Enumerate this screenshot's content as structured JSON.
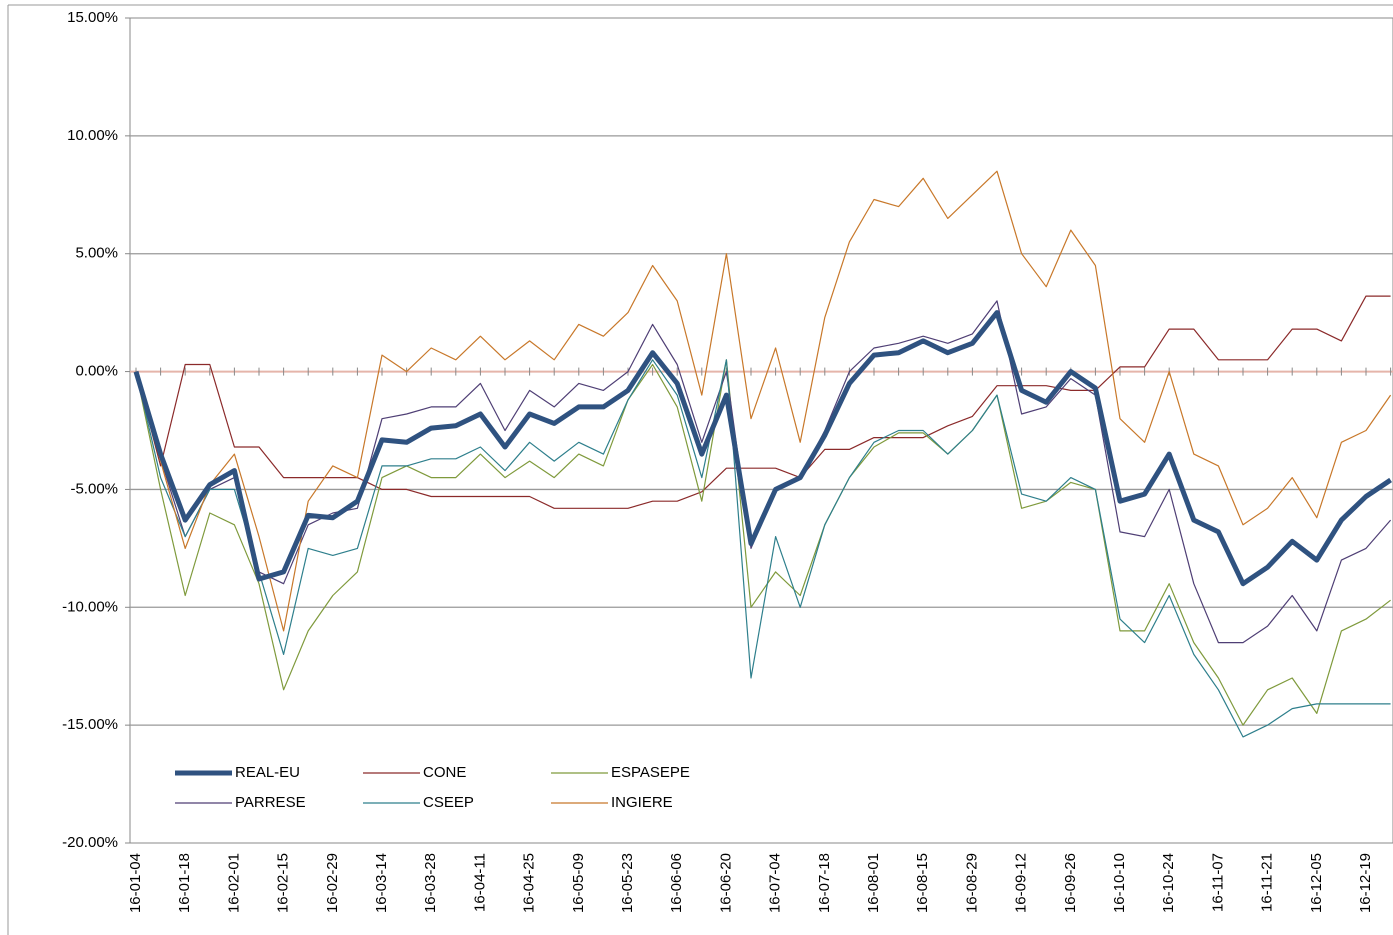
{
  "chart_data": {
    "type": "line",
    "categories": [
      "16-01-04",
      null,
      "16-01-18",
      null,
      "16-02-01",
      null,
      "16-02-15",
      null,
      "16-02-29",
      null,
      "16-03-14",
      null,
      "16-03-28",
      null,
      "16-04-11",
      null,
      "16-04-25",
      null,
      "16-05-09",
      null,
      "16-05-23",
      null,
      "16-06-06",
      null,
      "16-06-20",
      null,
      "16-07-04",
      null,
      "16-07-18",
      null,
      "16-08-01",
      null,
      "16-08-15",
      null,
      "16-08-29",
      null,
      "16-09-12",
      null,
      "16-09-26",
      null,
      "16-10-10",
      null,
      "16-10-24",
      null,
      "16-11-07",
      null,
      "16-11-21",
      null,
      "16-12-05",
      null,
      "16-12-19",
      null
    ],
    "ylim": [
      -20,
      15
    ],
    "yticks": [
      {
        "value": -20,
        "label": "-20.00%"
      },
      {
        "value": -15,
        "label": "-15.00%"
      },
      {
        "value": -10,
        "label": "-10.00%"
      },
      {
        "value": -5,
        "label": "-5.00%"
      },
      {
        "value": 0,
        "label": "0.00%"
      },
      {
        "value": 5,
        "label": "5.00%"
      },
      {
        "value": 10,
        "label": "10.00%"
      },
      {
        "value": 15,
        "label": "15.00%"
      }
    ],
    "grid": true,
    "series": [
      {
        "name": "REAL-EU",
        "color": "#2f5280",
        "values": [
          0,
          -3.5,
          -6.3,
          -4.8,
          -4.2,
          -8.8,
          -8.5,
          -6.1,
          -6.2,
          -5.5,
          -2.9,
          -3,
          -2.4,
          -2.3,
          -1.8,
          -3.2,
          -1.8,
          -2.2,
          -1.5,
          -1.5,
          -0.8,
          0.8,
          -0.5,
          -3.5,
          -1,
          -7.3,
          -5,
          -4.5,
          -2.7,
          -0.5,
          0.7,
          0.8,
          1.3,
          0.8,
          1.2,
          2.5,
          -0.8,
          -1.3,
          0,
          -0.7,
          -5.5,
          -5.2,
          -3.5,
          -6.3,
          -6.8,
          -9,
          -8.3,
          -7.2,
          -8,
          -6.3,
          -5.3,
          -4.6
        ]
      },
      {
        "name": "CONE",
        "color": "#8b2a2a",
        "values": [
          0,
          -4,
          0.3,
          0.3,
          -3.2,
          -3.2,
          -4.5,
          -4.5,
          -4.5,
          -4.5,
          -5,
          -5,
          -5.3,
          -5.3,
          -5.3,
          -5.3,
          -5.3,
          -5.8,
          -5.8,
          -5.8,
          -5.8,
          -5.5,
          -5.5,
          -5.1,
          -4.1,
          -4.1,
          -4.1,
          -4.5,
          -3.3,
          -3.3,
          -2.8,
          -2.8,
          -2.8,
          -2.3,
          -1.9,
          -0.6,
          -0.6,
          -0.6,
          -0.8,
          -0.8,
          0.2,
          0.2,
          1.8,
          1.8,
          0.5,
          0.5,
          0.5,
          1.8,
          1.8,
          1.3,
          3.2,
          3.2
        ]
      },
      {
        "name": "ESPASEPE",
        "color": "#7f9a3c",
        "values": [
          0,
          -5,
          -9.5,
          -6,
          -6.5,
          -9,
          -13.5,
          -11,
          -9.5,
          -8.5,
          -4.5,
          -4,
          -4.5,
          -4.5,
          -3.5,
          -4.5,
          -3.8,
          -4.5,
          -3.5,
          -4,
          -1.2,
          0.3,
          -1.5,
          -5.5,
          0.5,
          -10,
          -8.5,
          -9.5,
          -6.5,
          -4.5,
          -3.2,
          -2.6,
          -2.6,
          -3.5,
          -2.5,
          -1,
          -5.8,
          -5.5,
          -4.7,
          -5,
          -11,
          -11,
          -9,
          -11.5,
          -13,
          -15,
          -13.5,
          -13,
          -14.5,
          -11,
          -10.5,
          -9.7
        ]
      },
      {
        "name": "PARRESE",
        "color": "#4f3f75",
        "values": [
          0,
          -3.7,
          -7,
          -5,
          -4.5,
          -8.5,
          -9,
          -6.5,
          -6,
          -5.8,
          -2,
          -1.8,
          -1.5,
          -1.5,
          -0.5,
          -2.5,
          -0.8,
          -1.5,
          -0.5,
          -0.8,
          0,
          2,
          0.3,
          -3,
          0,
          -7.5,
          -5,
          -4.5,
          -2.5,
          0,
          1,
          1.2,
          1.5,
          1.2,
          1.6,
          3,
          -1.8,
          -1.5,
          -0.3,
          -1,
          -6.8,
          -7,
          -5,
          -9,
          -11.5,
          -11.5,
          -10.8,
          -9.5,
          -11,
          -8,
          -7.5,
          -6.3
        ]
      },
      {
        "name": "CSEEP",
        "color": "#2e7f8c",
        "values": [
          0,
          -4.5,
          -7,
          -5,
          -5,
          -8.5,
          -12,
          -7.5,
          -7.8,
          -7.5,
          -4,
          -4,
          -3.7,
          -3.7,
          -3.2,
          -4.2,
          -3,
          -3.8,
          -3,
          -3.5,
          -1.2,
          0.5,
          -1,
          -4.5,
          0.5,
          -13,
          -7,
          -10,
          -6.5,
          -4.5,
          -3,
          -2.5,
          -2.5,
          -3.5,
          -2.5,
          -1,
          -5.2,
          -5.5,
          -4.5,
          -5,
          -10.5,
          -11.5,
          -9.5,
          -12,
          -13.5,
          -15.5,
          -15,
          -14.3,
          -14.1,
          -14.1,
          -14.1,
          -14.1
        ]
      },
      {
        "name": "INGIERE",
        "color": "#c8782a",
        "values": [
          0,
          -3.8,
          -7.5,
          -4.8,
          -3.5,
          -7,
          -11,
          -5.5,
          -4,
          -4.5,
          0.7,
          0,
          1,
          0.5,
          1.5,
          0.5,
          1.3,
          0.5,
          2,
          1.5,
          2.5,
          4.5,
          3,
          -1,
          5,
          -2,
          1,
          -3,
          2.3,
          5.5,
          7.3,
          7,
          8.2,
          6.5,
          7.5,
          8.5,
          5,
          3.6,
          6,
          4.5,
          -2,
          -3,
          0,
          -3.5,
          -4,
          -6.5,
          -5.8,
          -4.5,
          -6.2,
          -3,
          -2.5,
          -1
        ]
      }
    ]
  }
}
